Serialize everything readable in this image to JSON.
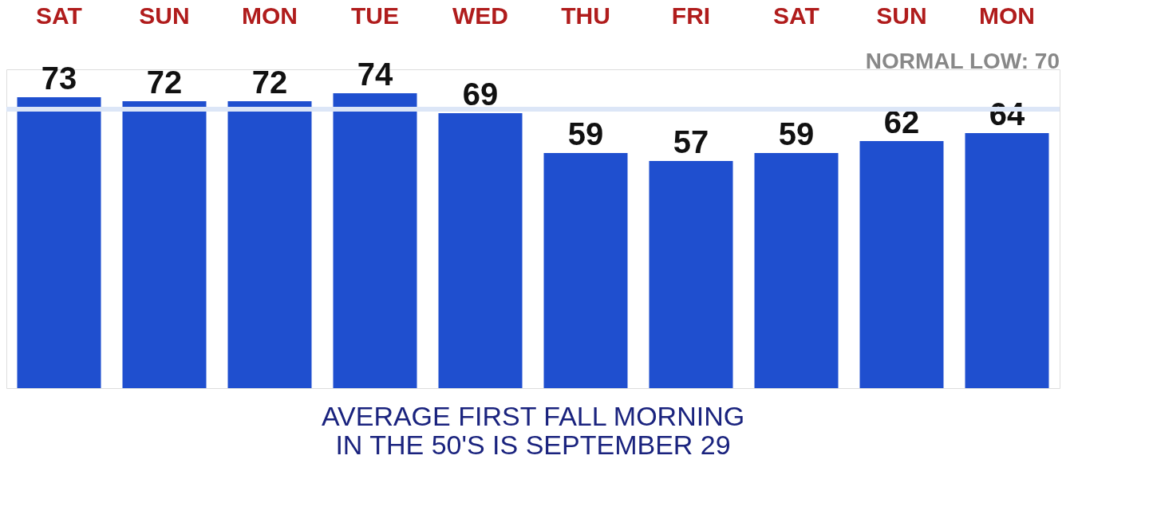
{
  "chart_data": {
    "type": "bar",
    "categories": [
      "SAT",
      "SUN",
      "MON",
      "TUE",
      "WED",
      "THU",
      "FRI",
      "SAT",
      "SUN",
      "MON"
    ],
    "values": [
      73,
      72,
      72,
      74,
      69,
      59,
      57,
      59,
      62,
      64
    ],
    "color": "#1f4fcf",
    "data_labels": true,
    "ref_lines": [
      {
        "axis": "y",
        "value": 70,
        "label": "NORMAL LOW: 70",
        "color": "#dce6f7"
      }
    ],
    "annotations": [
      "AVERAGE FIRST FALL MORNING\nIN THE 50'S IS SEPTEMBER 29"
    ],
    "grid": false
  }
}
